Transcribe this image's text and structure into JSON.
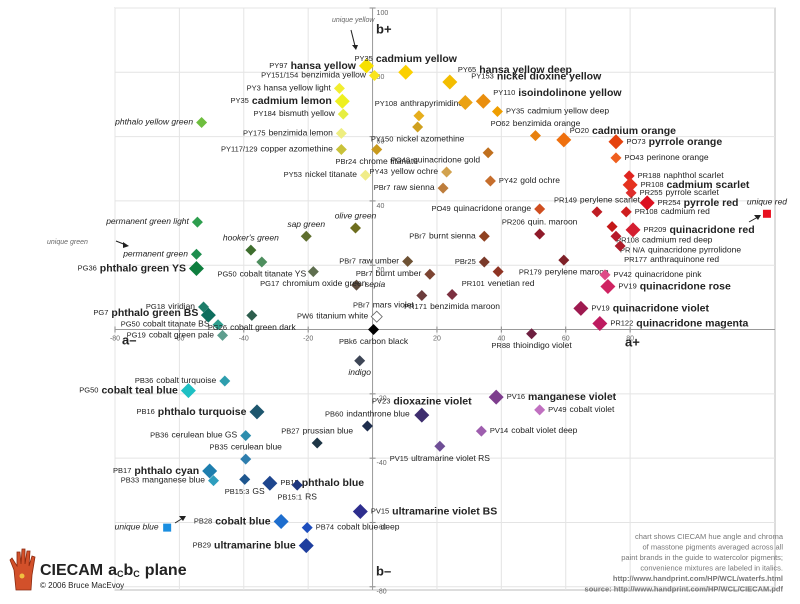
{
  "chart_data": {
    "type": "scatter",
    "title_parts": [
      "CIECAM",
      "a",
      "C",
      "b",
      "C",
      "plane"
    ],
    "credit": "© 2006 Bruce MacEvoy",
    "axis_labels": {
      "a_pos": "a+",
      "a_neg": "a–",
      "b_pos": "b+",
      "b_neg": "b–"
    },
    "annotations": [
      "unique yellow",
      "unique green"
    ],
    "notes": [
      "chart shows CIECAM hue angle and chroma",
      "of masstone pigments averaged across all",
      "paint brands in the guide to watercolor pigments;",
      "convenience mixtures are labeled in italics.",
      "http://www.handprint.com/HP/WCL/waterfs.html",
      "source: http://www.handprint.com/HP/WCL/CIECAM.pdf"
    ],
    "xlim": [
      -80,
      125
    ],
    "ylim": [
      -81,
      100
    ],
    "xticks": [
      -80,
      -60,
      -40,
      -20,
      20,
      40,
      60,
      80
    ],
    "yticks": [
      -80,
      -60,
      -40,
      -20,
      20,
      40,
      60,
      80,
      100
    ],
    "grid": true,
    "points": [
      {
        "code": "PY97",
        "name": "hansa yellow",
        "a": -1.9,
        "b": 82,
        "color": "#f7e000",
        "bold": true
      },
      {
        "code": "PY151/154",
        "name": "benzimida yellow",
        "a": 0.6,
        "b": 79,
        "color": "#f9e41c"
      },
      {
        "code": "PY3",
        "name": "hansa yellow light",
        "a": -10.3,
        "b": 75,
        "color": "#f2ee30"
      },
      {
        "code": "PY35",
        "name": "cadmium lemon",
        "a": -9.4,
        "b": 71,
        "color": "#eef020",
        "bold": true
      },
      {
        "code": "PY184",
        "name": "bismuth yellow",
        "a": -9.1,
        "b": 67,
        "color": "#e6ee40"
      },
      {
        "code": "PY175",
        "name": "benzimida lemon",
        "a": -9.7,
        "b": 61,
        "color": "#eeee80"
      },
      {
        "code": "PY117/129",
        "name": "copper azomethine",
        "a": -9.7,
        "b": 56,
        "color": "#c9c23a"
      },
      {
        "code": "PY53",
        "name": "nickel titanate",
        "a": -2.2,
        "b": 48,
        "color": "#f0ec88"
      },
      {
        "code": "PBr24",
        "name": "chrome titanate",
        "a": 1.3,
        "b": 56,
        "color": "#c99a1e"
      },
      {
        "code": "PY108",
        "name": "anthrapyrimidine",
        "a": 14.4,
        "b": 66.5,
        "color": "#e6ae1c"
      },
      {
        "code": "PY35",
        "name": "cadmium yellow",
        "a": 10.3,
        "b": 80,
        "color": "#fbd000",
        "bold": true
      },
      {
        "code": "PY65",
        "name": "hansa yellow deep",
        "a": 24,
        "b": 77,
        "color": "#f3bd00",
        "bold": true
      },
      {
        "code": "PY153",
        "name": "nickel dioxine yellow",
        "a": 28.8,
        "b": 70.6,
        "color": "#eba212",
        "bold": true
      },
      {
        "code": "PY110",
        "name": "isoindolinone yellow",
        "a": 34.4,
        "b": 71,
        "color": "#e98e0e",
        "bold": true
      },
      {
        "code": "PY35",
        "name": "cadmium yellow deep",
        "a": 38.8,
        "b": 67.8,
        "color": "#ef9e00"
      },
      {
        "code": "PY150",
        "name": "nickel azomethine",
        "a": 14,
        "b": 63,
        "color": "#cfa01e"
      },
      {
        "code": "PO62",
        "name": "benzimida orange",
        "a": 50.6,
        "b": 60.3,
        "color": "#e7800e"
      },
      {
        "code": "PO20",
        "name": "cadmium orange",
        "a": 59.4,
        "b": 59,
        "color": "#ef700e",
        "bold": true
      },
      {
        "code": "PO73",
        "name": "pyrrole orange",
        "a": 75.6,
        "b": 58.4,
        "color": "#e5420e",
        "bold": true
      },
      {
        "code": "PO43",
        "name": "perinone orange",
        "a": 75.6,
        "b": 53.4,
        "color": "#ef5f1e"
      },
      {
        "code": "PO48",
        "name": "quinacridone gold",
        "a": 35.9,
        "b": 55,
        "color": "#c0701e"
      },
      {
        "code": "PY42",
        "name": "gold ochre",
        "a": 36.6,
        "b": 46.2,
        "color": "#c66e2c"
      },
      {
        "code": "PY43",
        "name": "yellow ochre",
        "a": 23,
        "b": 49,
        "color": "#d2a24e"
      },
      {
        "code": "PBr7",
        "name": "raw sienna",
        "a": 21.9,
        "b": 44,
        "color": "#bd7d3c"
      },
      {
        "code": "PO49",
        "name": "quinacridone orange",
        "a": 51.9,
        "b": 37.5,
        "color": "#cf4e20"
      },
      {
        "code": "PR188",
        "name": "naphthol scarlet",
        "a": 79.7,
        "b": 47.8,
        "color": "#df2420"
      },
      {
        "code": "PR108",
        "name": "cadmium scarlet",
        "a": 80,
        "b": 45,
        "color": "#e5321e",
        "bold": true
      },
      {
        "code": "PR255",
        "name": "pyrrole scarlet",
        "a": 80.3,
        "b": 42.5,
        "color": "#de2e2c"
      },
      {
        "code": "PR254",
        "name": "pyrrole red",
        "a": 85.3,
        "b": 39.4,
        "color": "#dc1020",
        "bold": true
      },
      {
        "code": "PR108",
        "name": "cadmium red",
        "a": 78.8,
        "b": 36.6,
        "color": "#cf1e1e"
      },
      {
        "code": "PR209",
        "name": "quinacridone red",
        "a": 80.9,
        "b": 31,
        "color": "#d41e30",
        "bold": true
      },
      {
        "code": "PR149",
        "name": "perylene scarlet",
        "a": 69.7,
        "b": 36.6,
        "color": "#bf1e24"
      },
      {
        "code": "PR108",
        "name": "cadmium red deep",
        "a": 74.4,
        "b": 32,
        "color": "#c41818"
      },
      {
        "code": "PR N/A",
        "name": "quinacridone pyrrolidone",
        "a": 75.6,
        "b": 29,
        "color": "#b81a2a"
      },
      {
        "code": "PR177",
        "name": "anthraquinone red",
        "a": 76.9,
        "b": 26,
        "color": "#ae1a28"
      },
      {
        "code": "PR206",
        "name": "quin. maroon",
        "a": 51.9,
        "b": 29.7,
        "color": "#8f1a2a"
      },
      {
        "code": "PR179",
        "name": "perylene maroon",
        "a": 59.4,
        "b": 21.6,
        "color": "#7e2028"
      },
      {
        "code": "PV42",
        "name": "quinacridone pink",
        "a": 72.2,
        "b": 17,
        "color": "#de4a86"
      },
      {
        "code": "PV19",
        "name": "quinacridone rose",
        "a": 73.1,
        "b": 13.4,
        "color": "#cf2462",
        "bold": true
      },
      {
        "code": "PV19",
        "name": "quinacridone violet",
        "a": 64.7,
        "b": 6.6,
        "color": "#9e1a50",
        "bold": true
      },
      {
        "code": "PR122",
        "name": "quinacridone magenta",
        "a": 70.6,
        "b": 1.9,
        "color": "#bd1c60",
        "bold": true
      },
      {
        "code": "PBr7",
        "name": "burnt sienna",
        "a": 34.7,
        "b": 29,
        "color": "#8f4222"
      },
      {
        "code": "PBr25",
        "a": 34.7,
        "b": 21,
        "color": "#7a3a2a"
      },
      {
        "code": "PR101",
        "name": "venetian red",
        "a": 39,
        "b": 18,
        "color": "#8f3424"
      },
      {
        "code": "PR171",
        "name": "benzimida maroon",
        "a": 24.7,
        "b": 10.9,
        "color": "#7c3040"
      },
      {
        "code": "PBr7",
        "name": "raw umber",
        "a": 10.9,
        "b": 21.2,
        "color": "#6e5234"
      },
      {
        "code": "PBr7",
        "name": "burnt umber",
        "a": 17.8,
        "b": 17.2,
        "color": "#7c4432"
      },
      {
        "code": "PBr7",
        "name": "mars violet",
        "a": 15.3,
        "b": 10.6,
        "color": "#6c3c3c"
      },
      {
        "name": "sepia",
        "a": -5,
        "b": 13.8,
        "color": "#5e4c3e"
      },
      {
        "code": "PW6",
        "name": "titanium white",
        "a": 1.3,
        "b": 4,
        "color": "#ffffff"
      },
      {
        "code": "PBk6",
        "name": "carbon black",
        "a": 0.3,
        "b": 0,
        "color": "#000000"
      },
      {
        "name": "indigo",
        "a": -4,
        "b": -9.7,
        "color": "#3e4656"
      },
      {
        "code": "PR88",
        "name": "thioindigo violet",
        "a": 49.4,
        "b": -1.3,
        "color": "#6e2040"
      },
      {
        "code": "PV23",
        "name": "dioxazine violet",
        "a": 15.3,
        "b": -26.6,
        "color": "#3e2e6e",
        "bold": true
      },
      {
        "code": "PV16",
        "name": "manganese violet",
        "a": 38.4,
        "b": -21,
        "color": "#7e3e8e",
        "bold": true
      },
      {
        "code": "PV49",
        "name": "cobalt violet",
        "a": 51.9,
        "b": -25,
        "color": "#c070c0"
      },
      {
        "code": "PV14",
        "name": "cobalt violet deep",
        "a": 33.8,
        "b": -31.6,
        "color": "#9e5eae"
      },
      {
        "code": "PV15",
        "name": "ultramarine violet RS",
        "a": 20.9,
        "b": -36.3,
        "color": "#6e4e96"
      },
      {
        "code": "PB60",
        "name": "indanthrone blue",
        "a": -1.6,
        "b": -30,
        "color": "#1e2e4e"
      },
      {
        "code": "PB27",
        "name": "prussian blue",
        "a": -17.2,
        "b": -35.3,
        "color": "#1e3646"
      },
      {
        "code": "PV15",
        "name": "ultramarine violet BS",
        "a": -3.8,
        "b": -56.6,
        "color": "#2e2e8e",
        "bold": true
      },
      {
        "code": "PB74",
        "name": "cobalt blue deep",
        "a": -20.3,
        "b": -61.6,
        "color": "#1e4ebe"
      },
      {
        "code": "PB29",
        "name": "ultramarine blue",
        "a": -20.6,
        "b": -67.2,
        "color": "#1e3e9e",
        "bold": true
      },
      {
        "code": "PB28",
        "name": "cobalt blue",
        "a": -28.4,
        "b": -59.7,
        "color": "#1e6ece",
        "bold": true
      },
      {
        "name": "unique blue",
        "a": -63.8,
        "b": -61.6,
        "color": "#1a8ee0",
        "shape": "square"
      },
      {
        "code": "PB15",
        "name": "phthalo blue",
        "a": -31.9,
        "b": -47.8,
        "color": "#1e468e",
        "bold": true
      },
      {
        "code": "PB15:1",
        "name": "RS",
        "a": -23.4,
        "b": -48.4,
        "color": "#1e367e"
      },
      {
        "code": "PB15:3",
        "name": "GS",
        "a": -39.7,
        "b": -46.6,
        "color": "#1e568e"
      },
      {
        "code": "PB17",
        "name": "phthalo cyan",
        "a": -50.6,
        "b": -44,
        "color": "#1e7eae",
        "bold": true
      },
      {
        "code": "PB33",
        "name": "manganese blue",
        "a": -49.4,
        "b": -47,
        "color": "#2e9ebe"
      },
      {
        "code": "PB35",
        "name": "cerulean blue",
        "a": -39.4,
        "b": -40.3,
        "color": "#2e7eae"
      },
      {
        "code": "PB36",
        "name": "cerulean blue GS",
        "a": -39.4,
        "b": -33,
        "color": "#2e8eae"
      },
      {
        "code": "PB16",
        "name": "phthalo turquoise",
        "a": -35.9,
        "b": -25.6,
        "color": "#1e566e",
        "bold": true
      },
      {
        "code": "PB36",
        "name": "cobalt turquoise",
        "a": -45.9,
        "b": -16,
        "color": "#2e9eae"
      },
      {
        "code": "PG50",
        "name": "cobalt teal blue",
        "a": -57.2,
        "b": -19,
        "color": "#1ec0c4",
        "bold": true
      },
      {
        "code": "PG19",
        "name": "cobalt green pale",
        "a": -46.6,
        "b": -1.8,
        "color": "#5e9e8e"
      },
      {
        "code": "PG50",
        "name": "cobalt titanate BS",
        "a": -48,
        "b": 1.5,
        "color": "#2e9e8e"
      },
      {
        "code": "PG26",
        "name": "cobalt green dark",
        "a": -37.5,
        "b": 4.4,
        "color": "#2e5e4e"
      },
      {
        "code": "PG7",
        "name": "phthalo green BS",
        "a": -51,
        "b": 4.5,
        "color": "#0e6e5e",
        "bold": true
      },
      {
        "code": "PG18",
        "name": "viridian",
        "a": -52.5,
        "b": 7,
        "color": "#1e7e6a"
      },
      {
        "code": "PG36",
        "name": "phthalo green YS",
        "a": -54.7,
        "b": 19,
        "color": "#0e7e3e",
        "bold": true
      },
      {
        "name": "permanent green",
        "a": -54.7,
        "b": 23.4,
        "color": "#1e8e4e"
      },
      {
        "name": "permanent green light",
        "a": -54.4,
        "b": 33.4,
        "color": "#2e9e4e"
      },
      {
        "name": "phthalo yellow green",
        "a": -53.1,
        "b": 64.4,
        "color": "#6ebe3e"
      },
      {
        "name": "hooker's green",
        "a": -37.8,
        "b": 24.7,
        "color": "#3e6e2e"
      },
      {
        "code": "PG50",
        "name": "cobalt titanate YS",
        "a": -34.4,
        "b": 21,
        "color": "#4e8e5e"
      },
      {
        "name": "sap green",
        "a": -20.6,
        "b": 29,
        "color": "#5e6e2e"
      },
      {
        "name": "olive green",
        "a": -5.3,
        "b": 31.6,
        "color": "#6e6e1e"
      },
      {
        "code": "PG17",
        "name": "chromium oxide green",
        "a": -18.4,
        "b": 18,
        "color": "#5e6e4e"
      },
      {
        "name": "unique red",
        "a": 122.5,
        "b": 36,
        "color": "#e81020",
        "shape": "square"
      }
    ]
  }
}
